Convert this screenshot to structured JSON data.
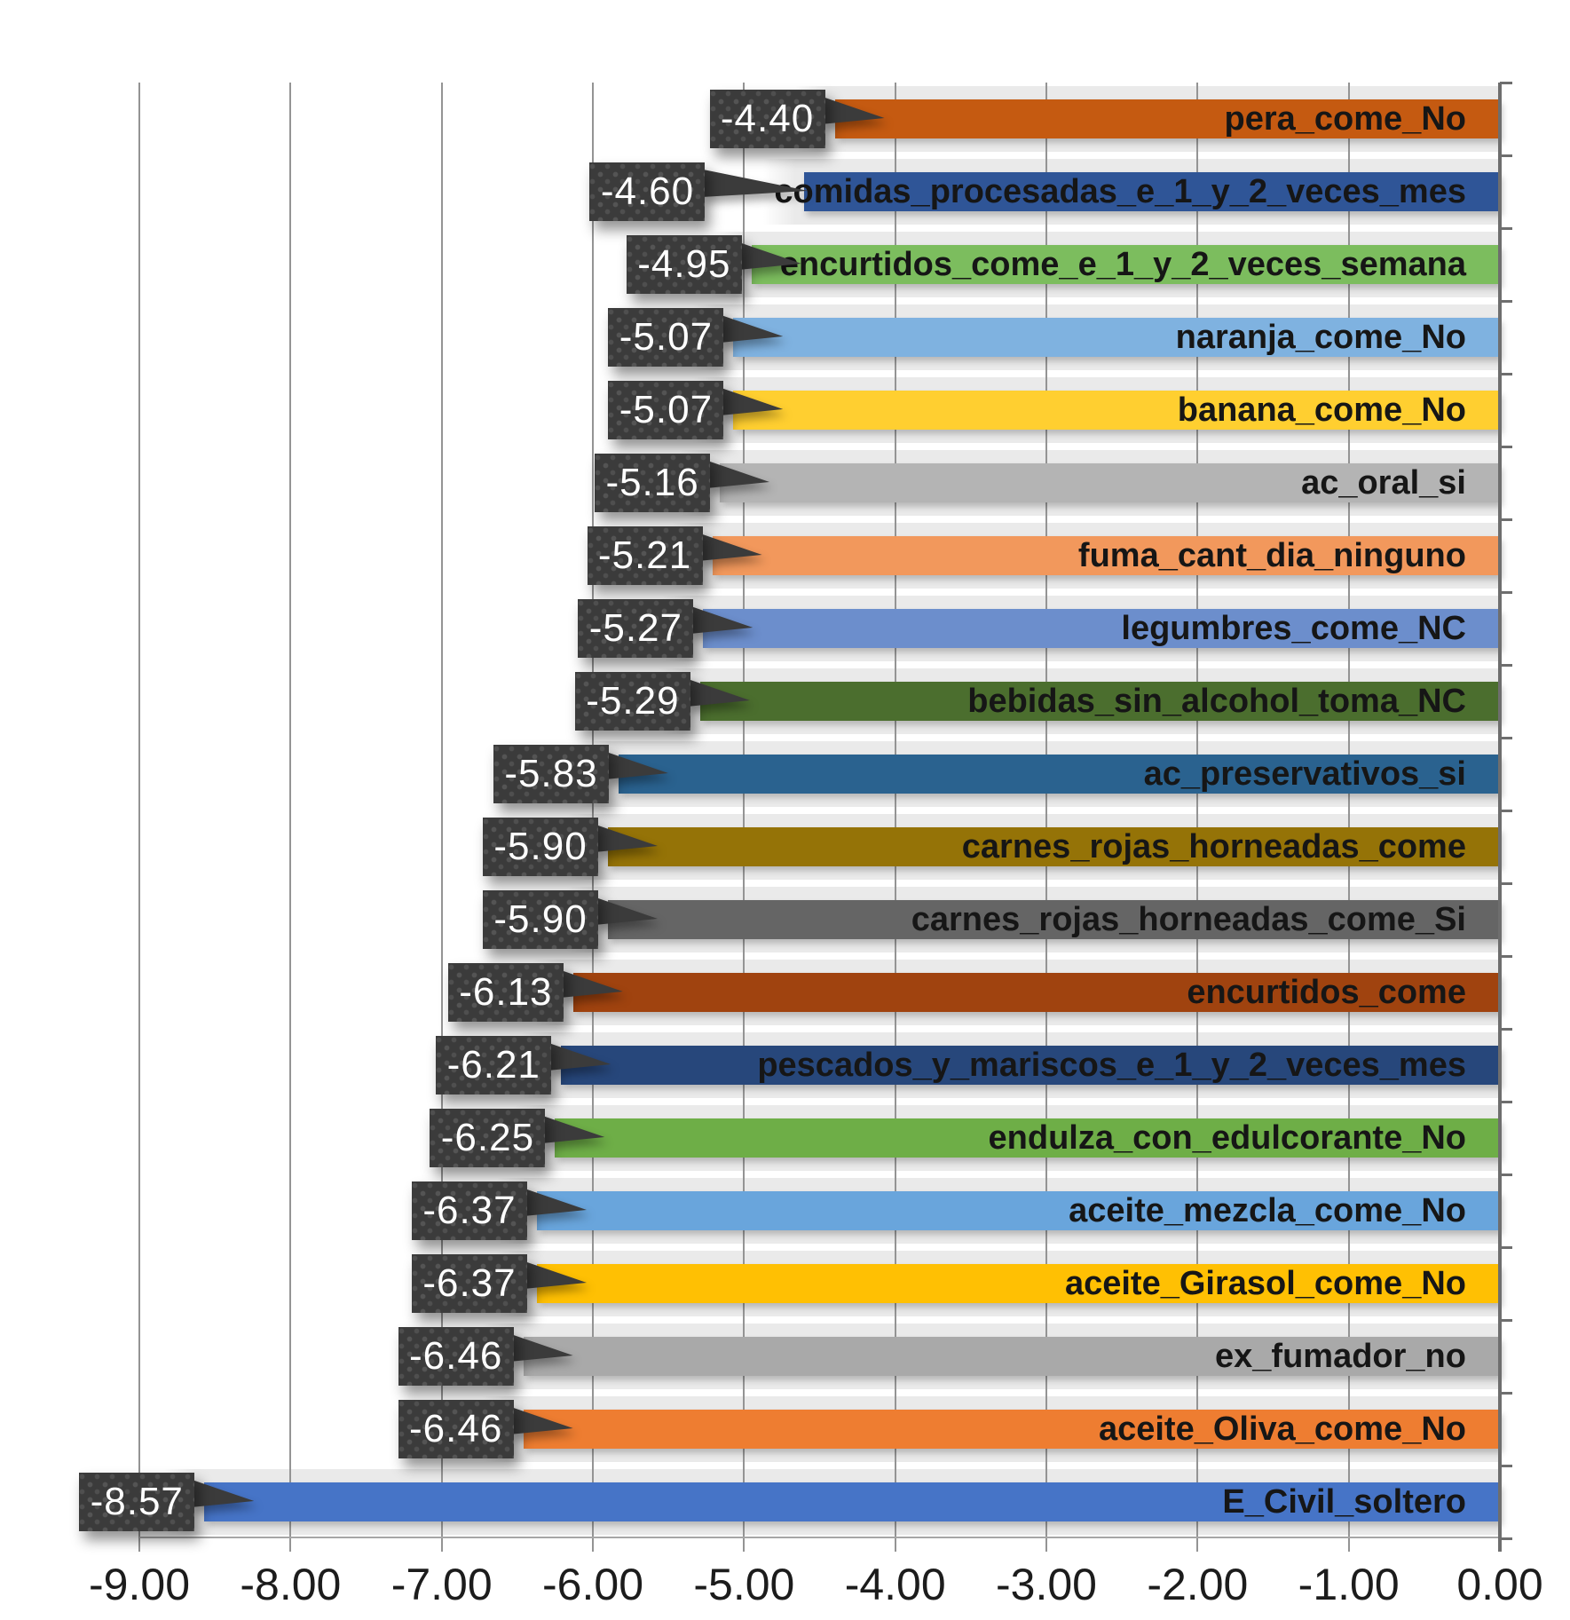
{
  "chart_data": {
    "type": "bar",
    "orientation": "horizontal",
    "title": "",
    "xlabel": "",
    "ylabel": "",
    "xlim": [
      -9,
      0
    ],
    "grid": true,
    "legend": "none",
    "x_ticks": [
      "-9.00",
      "-8.00",
      "-7.00",
      "-6.00",
      "-5.00",
      "-4.00",
      "-3.00",
      "-2.00",
      "-1.00",
      "0.00"
    ],
    "x_tick_values": [
      -9,
      -8,
      -7,
      -6,
      -5,
      -4,
      -3,
      -2,
      -1,
      0
    ],
    "rows": [
      {
        "label": "pera_come_No",
        "value": -4.4,
        "display": "-4.40",
        "color": "#C55A11"
      },
      {
        "label": "comidas_procesadas_e_1_y_2_veces_mes",
        "value": -4.6,
        "display": "-4.60",
        "color": "#2F5597"
      },
      {
        "label": "encurtidos_come_e_1_y_2_veces_semana",
        "value": -4.95,
        "display": "-4.95",
        "color": "#7CBD5E"
      },
      {
        "label": "naranja_come_No",
        "value": -5.07,
        "display": "-5.07",
        "color": "#7FB2E0"
      },
      {
        "label": "banana_come_No",
        "value": -5.07,
        "display": "-5.07",
        "color": "#FFCF30"
      },
      {
        "label": "ac_oral_si",
        "value": -5.16,
        "display": "-5.16",
        "color": "#B4B4B4"
      },
      {
        "label": "fuma_cant_dia_ninguno",
        "value": -5.21,
        "display": "-5.21",
        "color": "#F2985C"
      },
      {
        "label": "legumbres_come_NC",
        "value": -5.27,
        "display": "-5.27",
        "color": "#6C8ECC"
      },
      {
        "label": "bebidas_sin_alcohol_toma_NC",
        "value": -5.29,
        "display": "-5.29",
        "color": "#4B6E2E"
      },
      {
        "label": "ac_preservativos_si",
        "value": -5.83,
        "display": "-5.83",
        "color": "#2A628F"
      },
      {
        "label": "carnes_rojas_horneadas_come",
        "value": -5.9,
        "display": "-5.90",
        "color": "#957307"
      },
      {
        "label": "carnes_rojas_horneadas_come_Si",
        "value": -5.9,
        "display": "-5.90",
        "color": "#656565"
      },
      {
        "label": "encurtidos_come",
        "value": -6.13,
        "display": "-6.13",
        "color": "#A0430F"
      },
      {
        "label": "pescados_y_mariscos_e_1_y_2_veces_mes",
        "value": -6.21,
        "display": "-6.21",
        "color": "#27477B"
      },
      {
        "label": "endulza_con_edulcorante_No",
        "value": -6.25,
        "display": "-6.25",
        "color": "#6EAE47"
      },
      {
        "label": "aceite_mezcla_come_No",
        "value": -6.37,
        "display": "-6.37",
        "color": "#69A5DC"
      },
      {
        "label": "aceite_Girasol_come_No",
        "value": -6.37,
        "display": "-6.37",
        "color": "#FFC003"
      },
      {
        "label": "ex_fumador_no",
        "value": -6.46,
        "display": "-6.46",
        "color": "#A9A9A9"
      },
      {
        "label": "aceite_Oliva_come_No",
        "value": -6.46,
        "display": "-6.46",
        "color": "#EE7D31"
      },
      {
        "label": "E_Civil_soltero",
        "value": -8.57,
        "display": "-8.57",
        "color": "#4674C7"
      }
    ],
    "colors": {
      "plot_background": "#FFFFFF",
      "row_band": "#EAEAEA",
      "gridline": "#949494",
      "axis_line": "#6E6E6E",
      "callout_box": "#3B3B3B",
      "callout_text": "#FFFFFF",
      "category_text": "#161616",
      "tick_label_text": "#1C1C1C"
    }
  }
}
